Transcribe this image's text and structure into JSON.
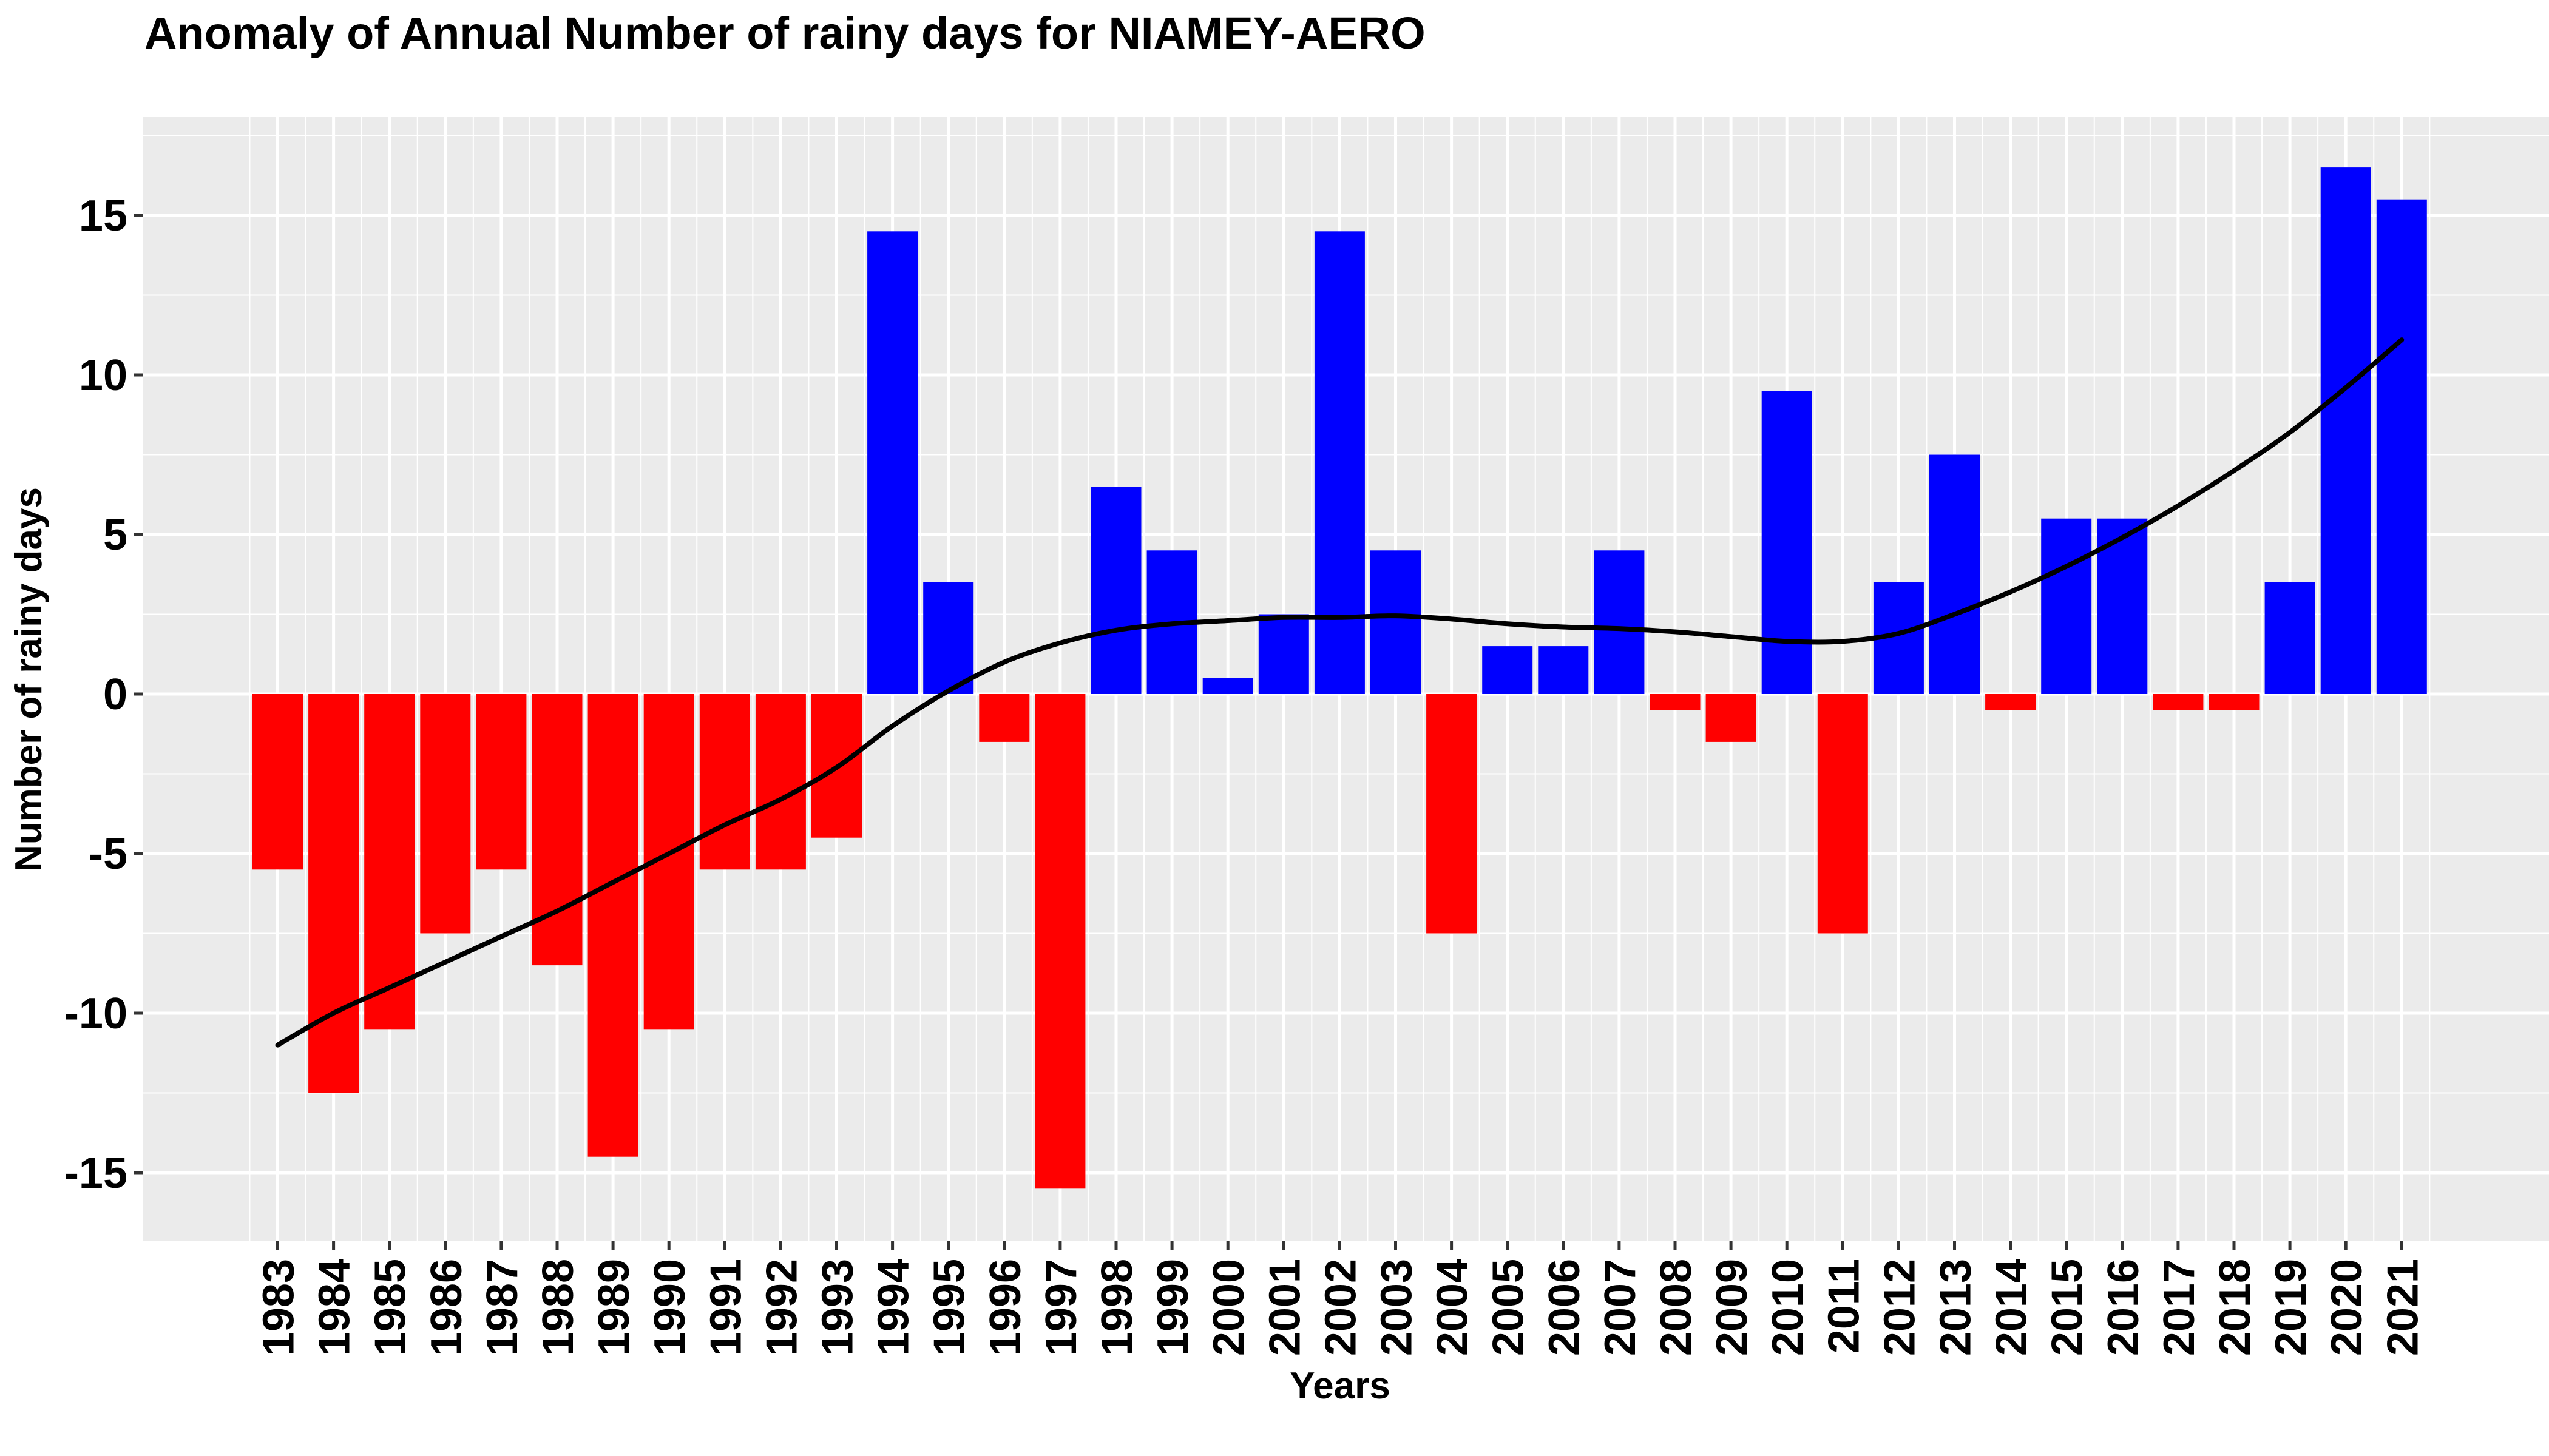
{
  "chart_data": {
    "type": "bar",
    "title": "Anomaly of Annual Number of rainy days for NIAMEY-AERO",
    "xlabel": "Years",
    "ylabel": "Number of rainy days",
    "categories": [
      "1983",
      "1984",
      "1985",
      "1986",
      "1987",
      "1988",
      "1989",
      "1990",
      "1991",
      "1992",
      "1993",
      "1994",
      "1995",
      "1996",
      "1997",
      "1998",
      "1999",
      "2000",
      "2001",
      "2002",
      "2003",
      "2004",
      "2005",
      "2006",
      "2007",
      "2008",
      "2009",
      "2010",
      "2011",
      "2012",
      "2013",
      "2014",
      "2015",
      "2016",
      "2017",
      "2018",
      "2019",
      "2020",
      "2021"
    ],
    "values": [
      -5.5,
      -12.5,
      -10.5,
      -7.5,
      -5.5,
      -8.5,
      -14.5,
      -10.5,
      -5.5,
      -5.5,
      -4.5,
      14.5,
      3.5,
      -1.5,
      -15.5,
      6.5,
      4.5,
      0.5,
      2.5,
      14.5,
      4.5,
      -7.5,
      1.5,
      1.5,
      4.5,
      -0.5,
      -1.5,
      9.5,
      -7.5,
      3.5,
      7.5,
      -0.5,
      5.5,
      5.5,
      -0.5,
      -0.5,
      3.5,
      16.5,
      15.5
    ],
    "trend": {
      "type": "smooth",
      "color": "#000000",
      "values": [
        -11.0,
        -10.0,
        -9.2,
        -8.4,
        -7.6,
        -6.8,
        -5.9,
        -5.0,
        -4.1,
        -3.3,
        -2.3,
        -1.0,
        0.1,
        1.0,
        1.6,
        2.0,
        2.2,
        2.3,
        2.4,
        2.4,
        2.45,
        2.35,
        2.2,
        2.1,
        2.05,
        1.95,
        1.8,
        1.65,
        1.65,
        1.9,
        2.5,
        3.2,
        4.0,
        4.9,
        5.9,
        7.0,
        8.2,
        9.6,
        11.1
      ]
    },
    "yticks": [
      -15,
      -10,
      -5,
      0,
      5,
      10,
      15
    ],
    "ylim": [
      -17,
      18
    ],
    "grid": true,
    "colors": {
      "positive": "#0000FF",
      "negative": "#FF0000",
      "panel": "#EBEBEB",
      "gridline": "#FFFFFF"
    }
  }
}
